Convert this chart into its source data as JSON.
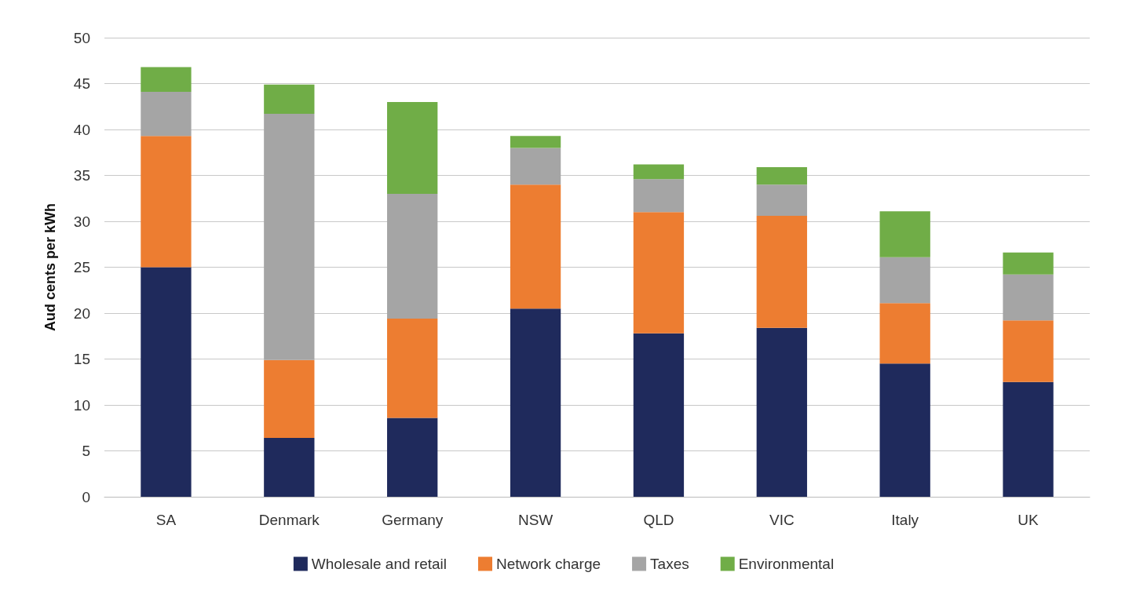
{
  "chart_data": {
    "type": "bar",
    "stacked": true,
    "ylabel": "Aud cents per kWh",
    "categories": [
      "SA",
      "Denmark",
      "Germany",
      "NSW",
      "QLD",
      "VIC",
      "Italy",
      "UK"
    ],
    "series": [
      {
        "name": "Wholesale and retail",
        "color": "#1f2a5c",
        "values": [
          25,
          6.4,
          8.6,
          20.5,
          17.8,
          18.4,
          14.5,
          12.5
        ]
      },
      {
        "name": "Network charge",
        "color": "#ed7d31",
        "values": [
          14.3,
          8.5,
          10.8,
          13.5,
          13.2,
          12.2,
          6.6,
          6.7
        ]
      },
      {
        "name": "Taxes",
        "color": "#a5a5a5",
        "values": [
          4.8,
          26.8,
          13.6,
          4.0,
          3.6,
          3.4,
          5.0,
          5.0
        ]
      },
      {
        "name": "Environmental",
        "color": "#70ad47",
        "values": [
          2.7,
          3.2,
          10.0,
          1.3,
          1.6,
          1.9,
          5.0,
          2.4
        ]
      }
    ],
    "ylim": [
      0,
      50
    ],
    "yticks": [
      0,
      5,
      10,
      15,
      20,
      25,
      30,
      35,
      40,
      45,
      50
    ],
    "grid": "y",
    "legend": "bottom"
  }
}
